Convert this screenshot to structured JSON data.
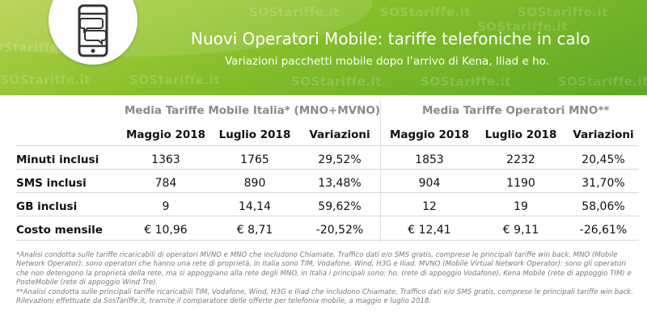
{
  "header": {
    "title": "Nuovi Operatori Mobile: tariffe telefoniche in calo",
    "subtitle": "Variazioni pacchetti mobile dopo l’arrivo di Kena, Iliad e ho.",
    "watermark": "SOStariffe.it"
  },
  "colors": {
    "banner_green": "#86bf2a",
    "text_dark": "#111111",
    "group_gray": "#8a8a8a"
  },
  "icons": {
    "phone": "phone-chat-icon"
  },
  "table": {
    "groups": [
      {
        "label": "Media Tariffe Mobile Italia* (MNO+MVNO)"
      },
      {
        "label": "Media Tariffe Operatori MNO**"
      }
    ],
    "columns": [
      "Maggio 2018",
      "Luglio 2018",
      "Variazioni",
      "Maggio 2018",
      "Luglio 2018",
      "Variazioni"
    ],
    "rows": [
      {
        "label": "Minuti inclusi",
        "values": [
          "1363",
          "1765",
          "29,52%",
          "1853",
          "2232",
          "20,45%"
        ]
      },
      {
        "label": "SMS inclusi",
        "values": [
          "784",
          "890",
          "13,48%",
          "904",
          "1190",
          "31,70%"
        ]
      },
      {
        "label": "GB inclusi",
        "values": [
          "9",
          "14,14",
          "59,62%",
          "12",
          "19",
          "58,06%"
        ]
      },
      {
        "label": "Costo mensile",
        "values": [
          "€ 10,96",
          "€ 8,71",
          "-20,52%",
          "€ 12,41",
          "€ 9,11",
          "-26,61%"
        ]
      }
    ]
  },
  "notes": [
    "*Analisi condotta sulle tariffe ricaricabili di operatori MVNO e MNO che includono Chiamate, Traffico dati e/o SMS gratis, comprese le principali tariffe win back. MNO (Mobile Network Operator): sono operatori che hanno una rete di proprietà, in Italia sono TIM, Vodafone, Wind, H3G e Iliad. MVNO (Mobile Virtual Network Operator): sono gli operatori che non detengono la proprietà della rete, ma si appoggiano alla rete degli MNO, in Italia i principali sono: ho. (rete di appoggio Vodafone), Kena Mobile (rete di appoggio TIM) e PosteMobile (rete di appoggio Wind Tre).",
    "**Analisi condotta sulle principali tariffe ricaricabili TIM, Vodafone, Wind, H3G e Iliad che includono Chiamate, Traffico dati e/o SMS gratis, comprese le principali tariffe win back.",
    "Rilevazioni effettuate da SosTariffe.it, tramite il comparatore delle offerte per telefonia mobile, a maggio e luglio 2018."
  ]
}
